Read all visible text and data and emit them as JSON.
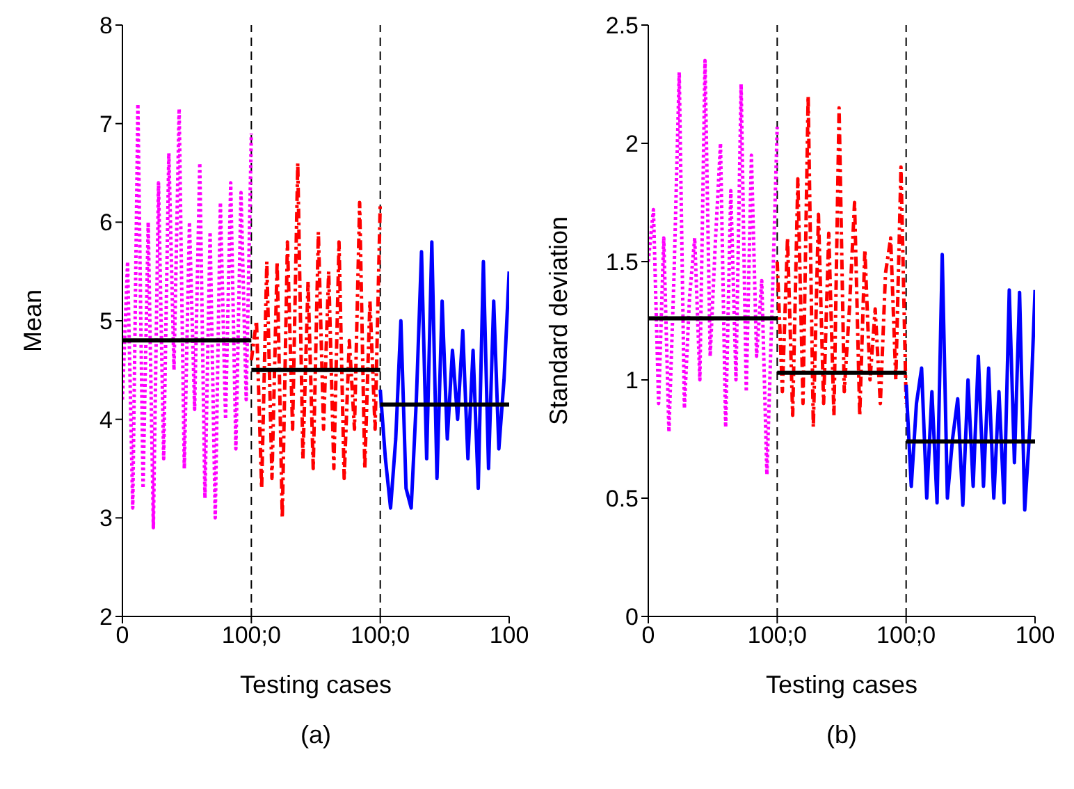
{
  "chart_data": [
    {
      "type": "line",
      "xlabel": "Testing cases",
      "ylabel": "Mean",
      "annotations": [
        "(a)"
      ],
      "categories": [
        "0",
        null,
        null,
        null,
        null,
        null,
        null,
        null,
        null,
        null,
        null,
        null,
        null,
        null,
        null,
        null,
        null,
        null,
        null,
        null,
        null,
        null,
        null,
        null,
        null,
        "100;0",
        null,
        null,
        null,
        null,
        null,
        null,
        null,
        null,
        null,
        null,
        null,
        null,
        null,
        null,
        null,
        null,
        null,
        null,
        null,
        null,
        null,
        null,
        null,
        null,
        "100;0",
        null,
        null,
        null,
        null,
        null,
        null,
        null,
        null,
        null,
        null,
        null,
        null,
        null,
        null,
        null,
        null,
        null,
        null,
        null,
        null,
        null,
        null,
        null,
        null,
        "100"
      ],
      "ylim": [
        2,
        8
      ],
      "yticks": [
        2,
        3,
        4,
        5,
        6,
        7,
        8
      ],
      "marker": "none",
      "series": [
        {
          "color": "#ff00ff",
          "line_style": "dotted",
          "values": [
            4.2,
            5.6,
            3.1,
            7.2,
            3.3,
            6.0,
            2.9,
            6.4,
            3.6,
            6.7,
            4.5,
            7.15,
            3.5,
            6.0,
            4.1,
            6.6,
            3.2,
            5.9,
            3.0,
            6.2,
            4.0,
            6.4,
            3.7,
            6.3,
            4.2,
            6.9,
            null,
            null,
            null,
            null,
            null,
            null,
            null,
            null,
            null,
            null,
            null,
            null,
            null,
            null,
            null,
            null,
            null,
            null,
            null,
            null,
            null,
            null,
            null,
            null,
            null,
            null,
            null,
            null,
            null,
            null,
            null,
            null,
            null,
            null,
            null,
            null,
            null,
            null,
            null,
            null,
            null,
            null,
            null,
            null,
            null,
            null,
            null,
            null,
            null,
            null
          ]
        },
        {
          "color": "#ff0000",
          "line_style": "dashed",
          "values": [
            null,
            null,
            null,
            null,
            null,
            null,
            null,
            null,
            null,
            null,
            null,
            null,
            null,
            null,
            null,
            null,
            null,
            null,
            null,
            null,
            null,
            null,
            null,
            null,
            null,
            4.6,
            5.0,
            3.3,
            5.6,
            3.4,
            5.6,
            3.0,
            5.8,
            3.9,
            6.6,
            3.6,
            5.4,
            3.5,
            5.9,
            3.9,
            5.5,
            3.5,
            5.8,
            3.4,
            4.8,
            3.9,
            6.2,
            3.5,
            5.2,
            3.9,
            6.2,
            null,
            null,
            null,
            null,
            null,
            null,
            null,
            null,
            null,
            null,
            null,
            null,
            null,
            null,
            null,
            null,
            null,
            null,
            null,
            null,
            null,
            null,
            null,
            null,
            null
          ]
        },
        {
          "color": "#0000ff",
          "line_style": "solid",
          "values": [
            null,
            null,
            null,
            null,
            null,
            null,
            null,
            null,
            null,
            null,
            null,
            null,
            null,
            null,
            null,
            null,
            null,
            null,
            null,
            null,
            null,
            null,
            null,
            null,
            null,
            null,
            null,
            null,
            null,
            null,
            null,
            null,
            null,
            null,
            null,
            null,
            null,
            null,
            null,
            null,
            null,
            null,
            null,
            null,
            null,
            null,
            null,
            null,
            null,
            null,
            4.3,
            3.6,
            3.1,
            3.8,
            5.0,
            3.3,
            3.1,
            4.2,
            5.7,
            3.6,
            5.8,
            3.4,
            5.2,
            3.8,
            4.7,
            4.0,
            4.9,
            3.6,
            4.7,
            3.3,
            5.6,
            3.5,
            5.2,
            3.7,
            4.4,
            5.5
          ]
        },
        {
          "color": "#000000",
          "line_style": "solid",
          "values": [
            4.8,
            4.8,
            4.8,
            4.8,
            4.8,
            4.8,
            4.8,
            4.8,
            4.8,
            4.8,
            4.8,
            4.8,
            4.8,
            4.8,
            4.8,
            4.8,
            4.8,
            4.8,
            4.8,
            4.8,
            4.8,
            4.8,
            4.8,
            4.8,
            4.8,
            4.8,
            null,
            null,
            null,
            null,
            null,
            null,
            null,
            null,
            null,
            null,
            null,
            null,
            null,
            null,
            null,
            null,
            null,
            null,
            null,
            null,
            null,
            null,
            null,
            null,
            null,
            null,
            null,
            null,
            null,
            null,
            null,
            null,
            null,
            null,
            null,
            null,
            null,
            null,
            null,
            null,
            null,
            null,
            null,
            null,
            null,
            null,
            null,
            null,
            null,
            null
          ]
        },
        {
          "color": "#000000",
          "line_style": "solid",
          "values": [
            null,
            null,
            null,
            null,
            null,
            null,
            null,
            null,
            null,
            null,
            null,
            null,
            null,
            null,
            null,
            null,
            null,
            null,
            null,
            null,
            null,
            null,
            null,
            null,
            null,
            4.5,
            4.5,
            4.5,
            4.5,
            4.5,
            4.5,
            4.5,
            4.5,
            4.5,
            4.5,
            4.5,
            4.5,
            4.5,
            4.5,
            4.5,
            4.5,
            4.5,
            4.5,
            4.5,
            4.5,
            4.5,
            4.5,
            4.5,
            4.5,
            4.5,
            4.5,
            null,
            null,
            null,
            null,
            null,
            null,
            null,
            null,
            null,
            null,
            null,
            null,
            null,
            null,
            null,
            null,
            null,
            null,
            null,
            null,
            null,
            null,
            null,
            null,
            null
          ]
        },
        {
          "color": "#000000",
          "line_style": "solid",
          "values": [
            null,
            null,
            null,
            null,
            null,
            null,
            null,
            null,
            null,
            null,
            null,
            null,
            null,
            null,
            null,
            null,
            null,
            null,
            null,
            null,
            null,
            null,
            null,
            null,
            null,
            null,
            null,
            null,
            null,
            null,
            null,
            null,
            null,
            null,
            null,
            null,
            null,
            null,
            null,
            null,
            null,
            null,
            null,
            null,
            null,
            null,
            null,
            null,
            null,
            null,
            4.15,
            4.15,
            4.15,
            4.15,
            4.15,
            4.15,
            4.15,
            4.15,
            4.15,
            4.15,
            4.15,
            4.15,
            4.15,
            4.15,
            4.15,
            4.15,
            4.15,
            4.15,
            4.15,
            4.15,
            4.15,
            4.15,
            4.15,
            4.15,
            4.15,
            4.15
          ]
        }
      ]
    },
    {
      "type": "line",
      "xlabel": "Testing cases",
      "ylabel": "Standard deviation",
      "annotations": [
        "(b)"
      ],
      "categories": [
        "0",
        null,
        null,
        null,
        null,
        null,
        null,
        null,
        null,
        null,
        null,
        null,
        null,
        null,
        null,
        null,
        null,
        null,
        null,
        null,
        null,
        null,
        null,
        null,
        null,
        "100;0",
        null,
        null,
        null,
        null,
        null,
        null,
        null,
        null,
        null,
        null,
        null,
        null,
        null,
        null,
        null,
        null,
        null,
        null,
        null,
        null,
        null,
        null,
        null,
        null,
        "100;0",
        null,
        null,
        null,
        null,
        null,
        null,
        null,
        null,
        null,
        null,
        null,
        null,
        null,
        null,
        null,
        null,
        null,
        null,
        null,
        null,
        null,
        null,
        null,
        null,
        "100"
      ],
      "ylim": [
        0,
        2.5
      ],
      "yticks": [
        0,
        0.5,
        1,
        1.5,
        2,
        2.5
      ],
      "marker": "none",
      "series": [
        {
          "color": "#ff00ff",
          "line_style": "dotted",
          "values": [
            1.5,
            1.72,
            0.9,
            1.6,
            0.78,
            1.45,
            2.3,
            0.88,
            1.35,
            1.6,
            1.0,
            2.35,
            1.1,
            1.58,
            2.0,
            0.8,
            1.8,
            1.0,
            2.25,
            0.95,
            1.95,
            1.1,
            1.42,
            0.6,
            1.3,
            2.07,
            null,
            null,
            null,
            null,
            null,
            null,
            null,
            null,
            null,
            null,
            null,
            null,
            null,
            null,
            null,
            null,
            null,
            null,
            null,
            null,
            null,
            null,
            null,
            null,
            null,
            null,
            null,
            null,
            null,
            null,
            null,
            null,
            null,
            null,
            null,
            null,
            null,
            null,
            null,
            null,
            null,
            null,
            null,
            null,
            null,
            null,
            null,
            null,
            null,
            null
          ]
        },
        {
          "color": "#ff0000",
          "line_style": "dashed",
          "values": [
            null,
            null,
            null,
            null,
            null,
            null,
            null,
            null,
            null,
            null,
            null,
            null,
            null,
            null,
            null,
            null,
            null,
            null,
            null,
            null,
            null,
            null,
            null,
            null,
            null,
            1.5,
            0.95,
            1.6,
            0.85,
            1.85,
            0.9,
            2.2,
            0.8,
            1.7,
            0.9,
            1.62,
            0.85,
            2.15,
            0.95,
            1.3,
            1.75,
            0.85,
            1.55,
            1.0,
            1.3,
            0.9,
            1.45,
            1.6,
            1.0,
            1.9,
            0.9,
            null,
            null,
            null,
            null,
            null,
            null,
            null,
            null,
            null,
            null,
            null,
            null,
            null,
            null,
            null,
            null,
            null,
            null,
            null,
            null,
            null,
            null,
            null,
            null,
            null
          ]
        },
        {
          "color": "#0000ff",
          "line_style": "solid",
          "values": [
            null,
            null,
            null,
            null,
            null,
            null,
            null,
            null,
            null,
            null,
            null,
            null,
            null,
            null,
            null,
            null,
            null,
            null,
            null,
            null,
            null,
            null,
            null,
            null,
            null,
            null,
            null,
            null,
            null,
            null,
            null,
            null,
            null,
            null,
            null,
            null,
            null,
            null,
            null,
            null,
            null,
            null,
            null,
            null,
            null,
            null,
            null,
            null,
            null,
            null,
            0.98,
            0.55,
            0.9,
            1.05,
            0.5,
            0.95,
            0.48,
            1.53,
            0.5,
            0.75,
            0.92,
            0.47,
            1.0,
            0.55,
            1.1,
            0.55,
            1.05,
            0.5,
            0.95,
            0.48,
            1.38,
            0.65,
            1.37,
            0.45,
            0.8,
            1.38
          ]
        },
        {
          "color": "#000000",
          "line_style": "solid",
          "values": [
            1.26,
            1.26,
            1.26,
            1.26,
            1.26,
            1.26,
            1.26,
            1.26,
            1.26,
            1.26,
            1.26,
            1.26,
            1.26,
            1.26,
            1.26,
            1.26,
            1.26,
            1.26,
            1.26,
            1.26,
            1.26,
            1.26,
            1.26,
            1.26,
            1.26,
            1.26,
            null,
            null,
            null,
            null,
            null,
            null,
            null,
            null,
            null,
            null,
            null,
            null,
            null,
            null,
            null,
            null,
            null,
            null,
            null,
            null,
            null,
            null,
            null,
            null,
            null,
            null,
            null,
            null,
            null,
            null,
            null,
            null,
            null,
            null,
            null,
            null,
            null,
            null,
            null,
            null,
            null,
            null,
            null,
            null,
            null,
            null,
            null,
            null,
            null,
            null
          ]
        },
        {
          "color": "#000000",
          "line_style": "solid",
          "values": [
            null,
            null,
            null,
            null,
            null,
            null,
            null,
            null,
            null,
            null,
            null,
            null,
            null,
            null,
            null,
            null,
            null,
            null,
            null,
            null,
            null,
            null,
            null,
            null,
            null,
            1.03,
            1.03,
            1.03,
            1.03,
            1.03,
            1.03,
            1.03,
            1.03,
            1.03,
            1.03,
            1.03,
            1.03,
            1.03,
            1.03,
            1.03,
            1.03,
            1.03,
            1.03,
            1.03,
            1.03,
            1.03,
            1.03,
            1.03,
            1.03,
            1.03,
            1.03,
            null,
            null,
            null,
            null,
            null,
            null,
            null,
            null,
            null,
            null,
            null,
            null,
            null,
            null,
            null,
            null,
            null,
            null,
            null,
            null,
            null,
            null,
            null,
            null,
            null
          ]
        },
        {
          "color": "#000000",
          "line_style": "solid",
          "values": [
            null,
            null,
            null,
            null,
            null,
            null,
            null,
            null,
            null,
            null,
            null,
            null,
            null,
            null,
            null,
            null,
            null,
            null,
            null,
            null,
            null,
            null,
            null,
            null,
            null,
            null,
            null,
            null,
            null,
            null,
            null,
            null,
            null,
            null,
            null,
            null,
            null,
            null,
            null,
            null,
            null,
            null,
            null,
            null,
            null,
            null,
            null,
            null,
            null,
            null,
            0.74,
            0.74,
            0.74,
            0.74,
            0.74,
            0.74,
            0.74,
            0.74,
            0.74,
            0.74,
            0.74,
            0.74,
            0.74,
            0.74,
            0.74,
            0.74,
            0.74,
            0.74,
            0.74,
            0.74,
            0.74,
            0.74,
            0.74,
            0.74,
            0.74,
            0.74
          ]
        }
      ]
    }
  ]
}
